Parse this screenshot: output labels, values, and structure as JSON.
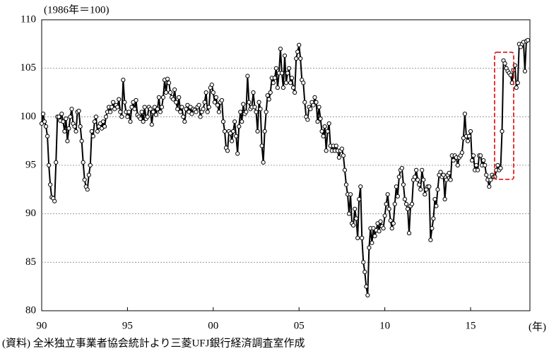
{
  "chart_data": {
    "type": "line",
    "ylabel": "(1986年＝100)",
    "xlabel": "(年)",
    "source": "(資料) 全米独立事業者協会統計より三菱UFJ銀行経済調査室作成",
    "color": "#000000",
    "marker_fill": "#ffffff",
    "highlight_color": "#e02020",
    "grid": true,
    "ylim": [
      80,
      110
    ],
    "yticks": [
      80,
      85,
      90,
      95,
      100,
      105,
      110
    ],
    "categories": [
      "90",
      null,
      null,
      null,
      null,
      null,
      null,
      null,
      null,
      null,
      null,
      null,
      null,
      null,
      null,
      null,
      null,
      null,
      null,
      null,
      null,
      null,
      null,
      null,
      null,
      null,
      null,
      null,
      null,
      null,
      null,
      null,
      null,
      null,
      null,
      null,
      null,
      null,
      null,
      null,
      null,
      null,
      null,
      null,
      null,
      null,
      null,
      null,
      null,
      null,
      null,
      null,
      null,
      null,
      null,
      null,
      null,
      null,
      null,
      null,
      "95",
      null,
      null,
      null,
      null,
      null,
      null,
      null,
      null,
      null,
      null,
      null,
      null,
      null,
      null,
      null,
      null,
      null,
      null,
      null,
      null,
      null,
      null,
      null,
      null,
      null,
      null,
      null,
      null,
      null,
      null,
      null,
      null,
      null,
      null,
      null,
      null,
      null,
      null,
      null,
      null,
      null,
      null,
      null,
      null,
      null,
      null,
      null,
      null,
      null,
      null,
      null,
      null,
      null,
      null,
      null,
      null,
      null,
      null,
      null,
      "00",
      null,
      null,
      null,
      null,
      null,
      null,
      null,
      null,
      null,
      null,
      null,
      null,
      null,
      null,
      null,
      null,
      null,
      null,
      null,
      null,
      null,
      null,
      null,
      null,
      null,
      null,
      null,
      null,
      null,
      null,
      null,
      null,
      null,
      null,
      null,
      null,
      null,
      null,
      null,
      null,
      null,
      null,
      null,
      null,
      null,
      null,
      null,
      null,
      null,
      null,
      null,
      null,
      null,
      null,
      null,
      null,
      null,
      null,
      null,
      "05",
      null,
      null,
      null,
      null,
      null,
      null,
      null,
      null,
      null,
      null,
      null,
      null,
      null,
      null,
      null,
      null,
      null,
      null,
      null,
      null,
      null,
      null,
      null,
      null,
      null,
      null,
      null,
      null,
      null,
      null,
      null,
      null,
      null,
      null,
      null,
      null,
      null,
      null,
      null,
      null,
      null,
      null,
      null,
      null,
      null,
      null,
      null,
      null,
      null,
      null,
      null,
      null,
      null,
      null,
      null,
      null,
      null,
      null,
      null,
      "10",
      null,
      null,
      null,
      null,
      null,
      null,
      null,
      null,
      null,
      null,
      null,
      null,
      null,
      null,
      null,
      null,
      null,
      null,
      null,
      null,
      null,
      null,
      null,
      null,
      null,
      null,
      null,
      null,
      null,
      null,
      null,
      null,
      null,
      null,
      null,
      null,
      null,
      null,
      null,
      null,
      null,
      null,
      null,
      null,
      null,
      null,
      null,
      null,
      null,
      null,
      null,
      null,
      null,
      null,
      null,
      null,
      null,
      null,
      null,
      "15",
      null,
      null,
      null,
      null,
      null,
      null,
      null,
      null,
      null,
      null,
      null,
      null,
      null,
      null,
      null,
      null,
      null,
      null,
      null,
      null,
      null,
      null,
      null,
      null,
      null,
      null,
      null,
      null,
      null,
      null,
      null,
      null,
      null,
      null,
      null,
      null,
      null,
      null,
      null,
      null
    ],
    "values": [
      99.3,
      100.3,
      99.5,
      99,
      98,
      95,
      93,
      91.7,
      91.6,
      91.3,
      95.3,
      100,
      100,
      99.6,
      100.3,
      99.5,
      98.5,
      99.8,
      97.5,
      98.8,
      100,
      100.8,
      99.3,
      99,
      98.5,
      100.5,
      100.6,
      99,
      97.5,
      95.3,
      93.5,
      92.8,
      92.5,
      94,
      95,
      98.5,
      98,
      99.5,
      100,
      98.5,
      99,
      99.3,
      98.8,
      99.5,
      99,
      100,
      100.5,
      101,
      100.5,
      101,
      101.5,
      100.8,
      101.2,
      101,
      101.8,
      100.5,
      100,
      103.8,
      101.5,
      100.5,
      100,
      100.5,
      99.5,
      101,
      101.5,
      100.8,
      101.7,
      100.2,
      100,
      99.8,
      100.5,
      99.5,
      101,
      99.8,
      100,
      101,
      100.8,
      99.2,
      100.5,
      101,
      100.2,
      100.8,
      102,
      100.5,
      101,
      102,
      103.8,
      102.5,
      103.9,
      103.5,
      102.5,
      102,
      101.8,
      102.8,
      101.5,
      100.8,
      102,
      100.5,
      101,
      100,
      99.5,
      100.8,
      101.2,
      100.5,
      101,
      100.3,
      100.8,
      100.7,
      100.5,
      101,
      101.2,
      100,
      100.5,
      100.8,
      101.5,
      102.5,
      100.5,
      101,
      103,
      103.3,
      102.5,
      101.5,
      102,
      101.2,
      100.5,
      101.5,
      101.7,
      99.5,
      98.5,
      96.8,
      96.5,
      98.5,
      98.3,
      97.5,
      98.5,
      99.5,
      98,
      96.2,
      99,
      100.5,
      99.5,
      101.3,
      100.3,
      100.5,
      104.2,
      101.5,
      100.8,
      101,
      102.5,
      101,
      100.5,
      98.5,
      101.5,
      100.8,
      97,
      95.3,
      98.5,
      100.5,
      102.2,
      101.8,
      102.5,
      104,
      103.5,
      104,
      105,
      103,
      104.5,
      107,
      104.5,
      103,
      106.3,
      103.5,
      104.5,
      105,
      103.5,
      104,
      103,
      102.5,
      106,
      106.7,
      107.4,
      106,
      103.8,
      103.5,
      101.5,
      100,
      99.7,
      101,
      100.8,
      101.5,
      101.2,
      102,
      101.5,
      99.5,
      101,
      99.8,
      98.5,
      98,
      99,
      96.5,
      98.5,
      99.3,
      97,
      96.5,
      97,
      96.5,
      97,
      96.5,
      95.8,
      96.5,
      96.7,
      96,
      94.5,
      93,
      92,
      90,
      92,
      89,
      88.8,
      90.5,
      89.5,
      87.5,
      91.5,
      92.8,
      87.5,
      85,
      84,
      82.5,
      81.6,
      86.5,
      88.5,
      87,
      88.5,
      87.7,
      88.3,
      89,
      88.2,
      89.2,
      88.7,
      88.5,
      89.8,
      91,
      92,
      90.5,
      89.3,
      88.5,
      89,
      91,
      92.8,
      91.8,
      93.8,
      94.5,
      94.7,
      93,
      91.5,
      91,
      90.5,
      88,
      90.8,
      91,
      93.5,
      93.8,
      94.5,
      93.5,
      93,
      92.5,
      94.5,
      93.5,
      92,
      92.5,
      92.8,
      92.8,
      87.3,
      88.5,
      89.5,
      91.5,
      90.8,
      92.5,
      94,
      94.3,
      93.8,
      94,
      91.5,
      93.5,
      94,
      94.2,
      93.5,
      96,
      95.5,
      96,
      95.8,
      95,
      95.8,
      96,
      96.3,
      97.8,
      100.3,
      98,
      97.5,
      98,
      98.5,
      95.5,
      96,
      94.5,
      95,
      94.5,
      96,
      96,
      95,
      95.5,
      95,
      94,
      93.5,
      92.8,
      93.5,
      94,
      93.8,
      93.8,
      94.5,
      95,
      94.5,
      94.7,
      98.5,
      105.8,
      105.5,
      105,
      104.7,
      104.5,
      104.3,
      103.5,
      104.8,
      105.3,
      103,
      103.5,
      107.5,
      107.2,
      107.5,
      107.7,
      104.7,
      107.8,
      107.9
    ]
  }
}
